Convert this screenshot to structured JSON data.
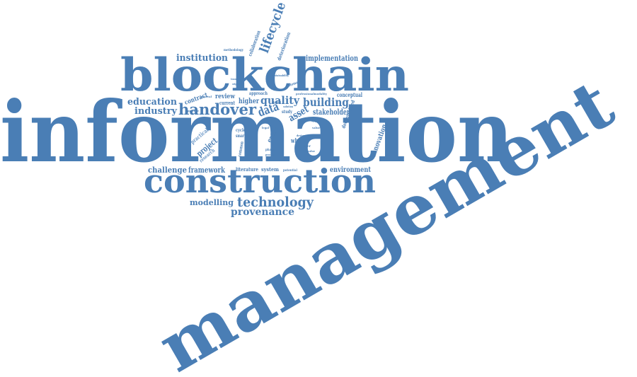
{
  "colors": {
    "primary": "#4a7eb5",
    "light": "#6f9ac8",
    "background": "#ffffff"
  },
  "words": {
    "information": "information",
    "management": "management",
    "blockchain": "blockchain",
    "construction": "construction",
    "handover": "handover",
    "technology": "technology",
    "lifecycle": "lifecycle",
    "institution": "institution",
    "education": "education",
    "industry": "industry",
    "building": "building",
    "quality": "quality",
    "data": "data",
    "asset": "asset",
    "provenance": "provenance",
    "modelling": "modelling",
    "challenge": "challenge",
    "framework": "framework",
    "environment": "environment",
    "implementation": "implementation",
    "stakeholder": "stakeholder",
    "innovation": "innovation",
    "project": "project",
    "higher": "higher",
    "review": "review",
    "contract": "contract",
    "practical": "practical",
    "research": "research",
    "whole": "whole",
    "entire": "entire",
    "literature": "literature",
    "system": "system",
    "conceptual": "conceptual",
    "decentralized": "decentralized",
    "deterioration": "deterioration",
    "collaboration": "collaboration",
    "methodology": "methodology",
    "current": "current",
    "approach": "approach",
    "systematic": "systematic",
    "professional": "professionalmodality",
    "transparency": "transparency",
    "originality": "originality",
    "cycle": "cycle",
    "smart": "smart",
    "common": "common",
    "study": "study",
    "potential": "potential",
    "phase": "phase",
    "paper": "paper",
    "value": "value",
    "solution": "solution",
    "sustainability": "sustainability",
    "design": "design",
    "legal": "legal",
    "process": "process",
    "practice": "practice",
    "general": "general",
    "value2": "value",
    "applied": "applied",
    "digital": "digital"
  }
}
